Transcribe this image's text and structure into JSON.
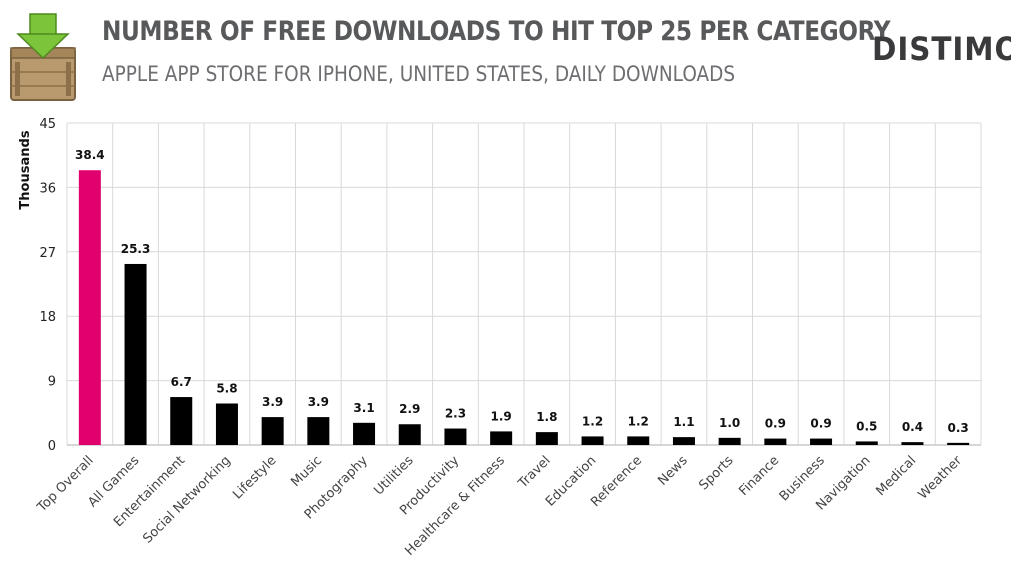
{
  "header": {
    "title": "NUMBER OF FREE DOWNLOADS TO HIT TOP 25 PER CATEGORY",
    "subtitle": "APPLE APP STORE FOR IPHONE, UNITED STATES, DAILY DOWNLOADS",
    "brand": "DISTIMO"
  },
  "icons": {
    "crate": "download-crate-icon"
  },
  "colors": {
    "highlight_bar": "#e0006e",
    "bar": "#000000",
    "grid": "#d9d9d9",
    "icon_arrow": "#7cc43a",
    "icon_crate": "#b89a6e"
  },
  "chart_data": {
    "type": "bar",
    "title": "NUMBER OF FREE DOWNLOADS TO HIT TOP 25 PER CATEGORY",
    "subtitle": "APPLE APP STORE FOR IPHONE, UNITED STATES, DAILY DOWNLOADS",
    "xlabel": "",
    "ylabel": "Thousands",
    "ylim": [
      0,
      45
    ],
    "yticks": [
      0,
      9,
      18,
      27,
      36,
      45
    ],
    "grid": true,
    "categories": [
      "Top Overall",
      "All Games",
      "Entertainment",
      "Social Networking",
      "Lifestyle",
      "Music",
      "Photography",
      "Utilities",
      "Productivity",
      "Healthcare & Fitness",
      "Travel",
      "Education",
      "Reference",
      "News",
      "Sports",
      "Finance",
      "Business",
      "Navigation",
      "Medical",
      "Weather"
    ],
    "values": [
      38.4,
      25.3,
      6.7,
      5.8,
      3.9,
      3.9,
      3.1,
      2.9,
      2.3,
      1.9,
      1.8,
      1.2,
      1.2,
      1.1,
      1.0,
      0.9,
      0.9,
      0.5,
      0.4,
      0.3
    ],
    "value_labels": [
      "38.4",
      "25.3",
      "6.7",
      "5.8",
      "3.9",
      "3.9",
      "3.1",
      "2.9",
      "2.3",
      "1.9",
      "1.8",
      "1.2",
      "1.2",
      "1.1",
      "1.0",
      "0.9",
      "0.9",
      "0.5",
      "0.4",
      "0.3"
    ],
    "highlight_index": 0
  }
}
